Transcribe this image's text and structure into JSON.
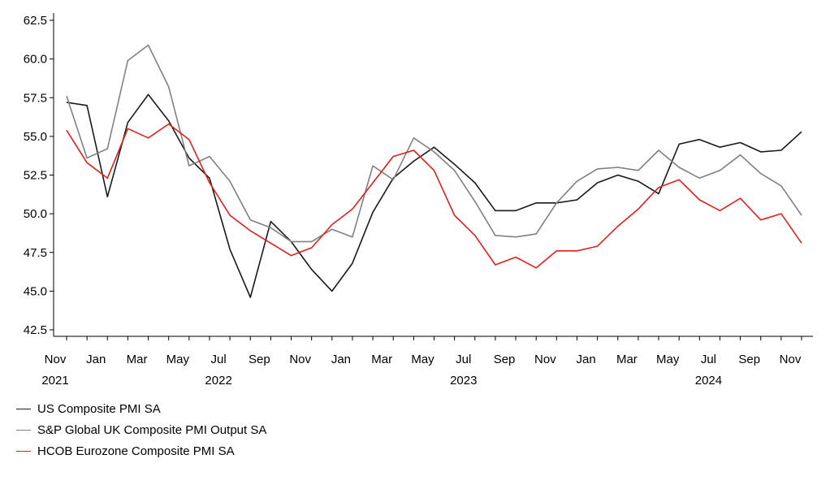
{
  "chart_data": {
    "type": "line",
    "title": "",
    "xlabel": "",
    "ylabel": "",
    "ylim": [
      42.5,
      62.5
    ],
    "yticks": [
      "42.5",
      "45.0",
      "47.5",
      "50.0",
      "52.5",
      "55.0",
      "57.5",
      "60.0",
      "62.5"
    ],
    "x": [
      "2021-11",
      "2021-12",
      "2022-01",
      "2022-02",
      "2022-03",
      "2022-04",
      "2022-05",
      "2022-06",
      "2022-07",
      "2022-08",
      "2022-09",
      "2022-10",
      "2022-11",
      "2022-12",
      "2023-01",
      "2023-02",
      "2023-03",
      "2023-04",
      "2023-05",
      "2023-06",
      "2023-07",
      "2023-08",
      "2023-09",
      "2023-10",
      "2023-11",
      "2023-12",
      "2024-01",
      "2024-02",
      "2024-03",
      "2024-04",
      "2024-05",
      "2024-06",
      "2024-07",
      "2024-08",
      "2024-09",
      "2024-10",
      "2024-11"
    ],
    "xtick_labels": [
      {
        "i": 0,
        "label": "Nov",
        "year": "2021"
      },
      {
        "i": 2,
        "label": "Jan",
        "year": ""
      },
      {
        "i": 4,
        "label": "Mar",
        "year": ""
      },
      {
        "i": 6,
        "label": "May",
        "year": ""
      },
      {
        "i": 8,
        "label": "Jul",
        "year": "2022"
      },
      {
        "i": 10,
        "label": "Sep",
        "year": ""
      },
      {
        "i": 12,
        "label": "Nov",
        "year": ""
      },
      {
        "i": 14,
        "label": "Jan",
        "year": ""
      },
      {
        "i": 16,
        "label": "Mar",
        "year": ""
      },
      {
        "i": 18,
        "label": "May",
        "year": ""
      },
      {
        "i": 20,
        "label": "Jul",
        "year": "2023"
      },
      {
        "i": 22,
        "label": "Sep",
        "year": ""
      },
      {
        "i": 24,
        "label": "Nov",
        "year": ""
      },
      {
        "i": 26,
        "label": "Jan",
        "year": ""
      },
      {
        "i": 28,
        "label": "Mar",
        "year": ""
      },
      {
        "i": 30,
        "label": "May",
        "year": ""
      },
      {
        "i": 32,
        "label": "Jul",
        "year": "2024"
      },
      {
        "i": 34,
        "label": "Sep",
        "year": ""
      },
      {
        "i": 36,
        "label": "Nov",
        "year": ""
      }
    ],
    "series": [
      {
        "name": "US Composite PMI SA",
        "color": "#1a1a1a",
        "values": [
          57.2,
          57.0,
          51.1,
          55.9,
          57.7,
          56.0,
          53.6,
          52.3,
          47.7,
          44.6,
          49.5,
          48.2,
          46.4,
          45.0,
          46.8,
          50.1,
          52.3,
          53.4,
          54.3,
          53.2,
          52.0,
          50.2,
          50.2,
          50.7,
          50.7,
          50.9,
          52.0,
          52.5,
          52.1,
          51.3,
          54.5,
          54.8,
          54.3,
          54.6,
          54.0,
          54.1,
          55.3
        ]
      },
      {
        "name": "S&P Global UK Composite PMI Output SA",
        "color": "#808080",
        "values": [
          57.6,
          53.6,
          54.2,
          59.9,
          60.9,
          58.2,
          53.1,
          53.7,
          52.1,
          49.6,
          49.1,
          48.2,
          48.2,
          49.0,
          48.5,
          53.1,
          52.2,
          54.9,
          54.0,
          52.8,
          50.8,
          48.6,
          48.5,
          48.7,
          50.7,
          52.1,
          52.9,
          53.0,
          52.8,
          54.1,
          53.0,
          52.3,
          52.8,
          53.8,
          52.6,
          51.8,
          49.9
        ]
      },
      {
        "name": "HCOB Eurozone Composite PMI SA",
        "color": "#e0201b",
        "values": [
          55.4,
          53.3,
          52.3,
          55.5,
          54.9,
          55.8,
          54.8,
          52.0,
          49.9,
          48.9,
          48.1,
          47.3,
          47.8,
          49.3,
          50.3,
          52.0,
          53.7,
          54.1,
          52.8,
          49.9,
          48.6,
          46.7,
          47.2,
          46.5,
          47.6,
          47.6,
          47.9,
          49.2,
          50.3,
          51.7,
          52.2,
          50.9,
          50.2,
          51.0,
          49.6,
          50.0,
          48.1
        ]
      }
    ],
    "grid": false,
    "legend_position": "bottom-left"
  }
}
